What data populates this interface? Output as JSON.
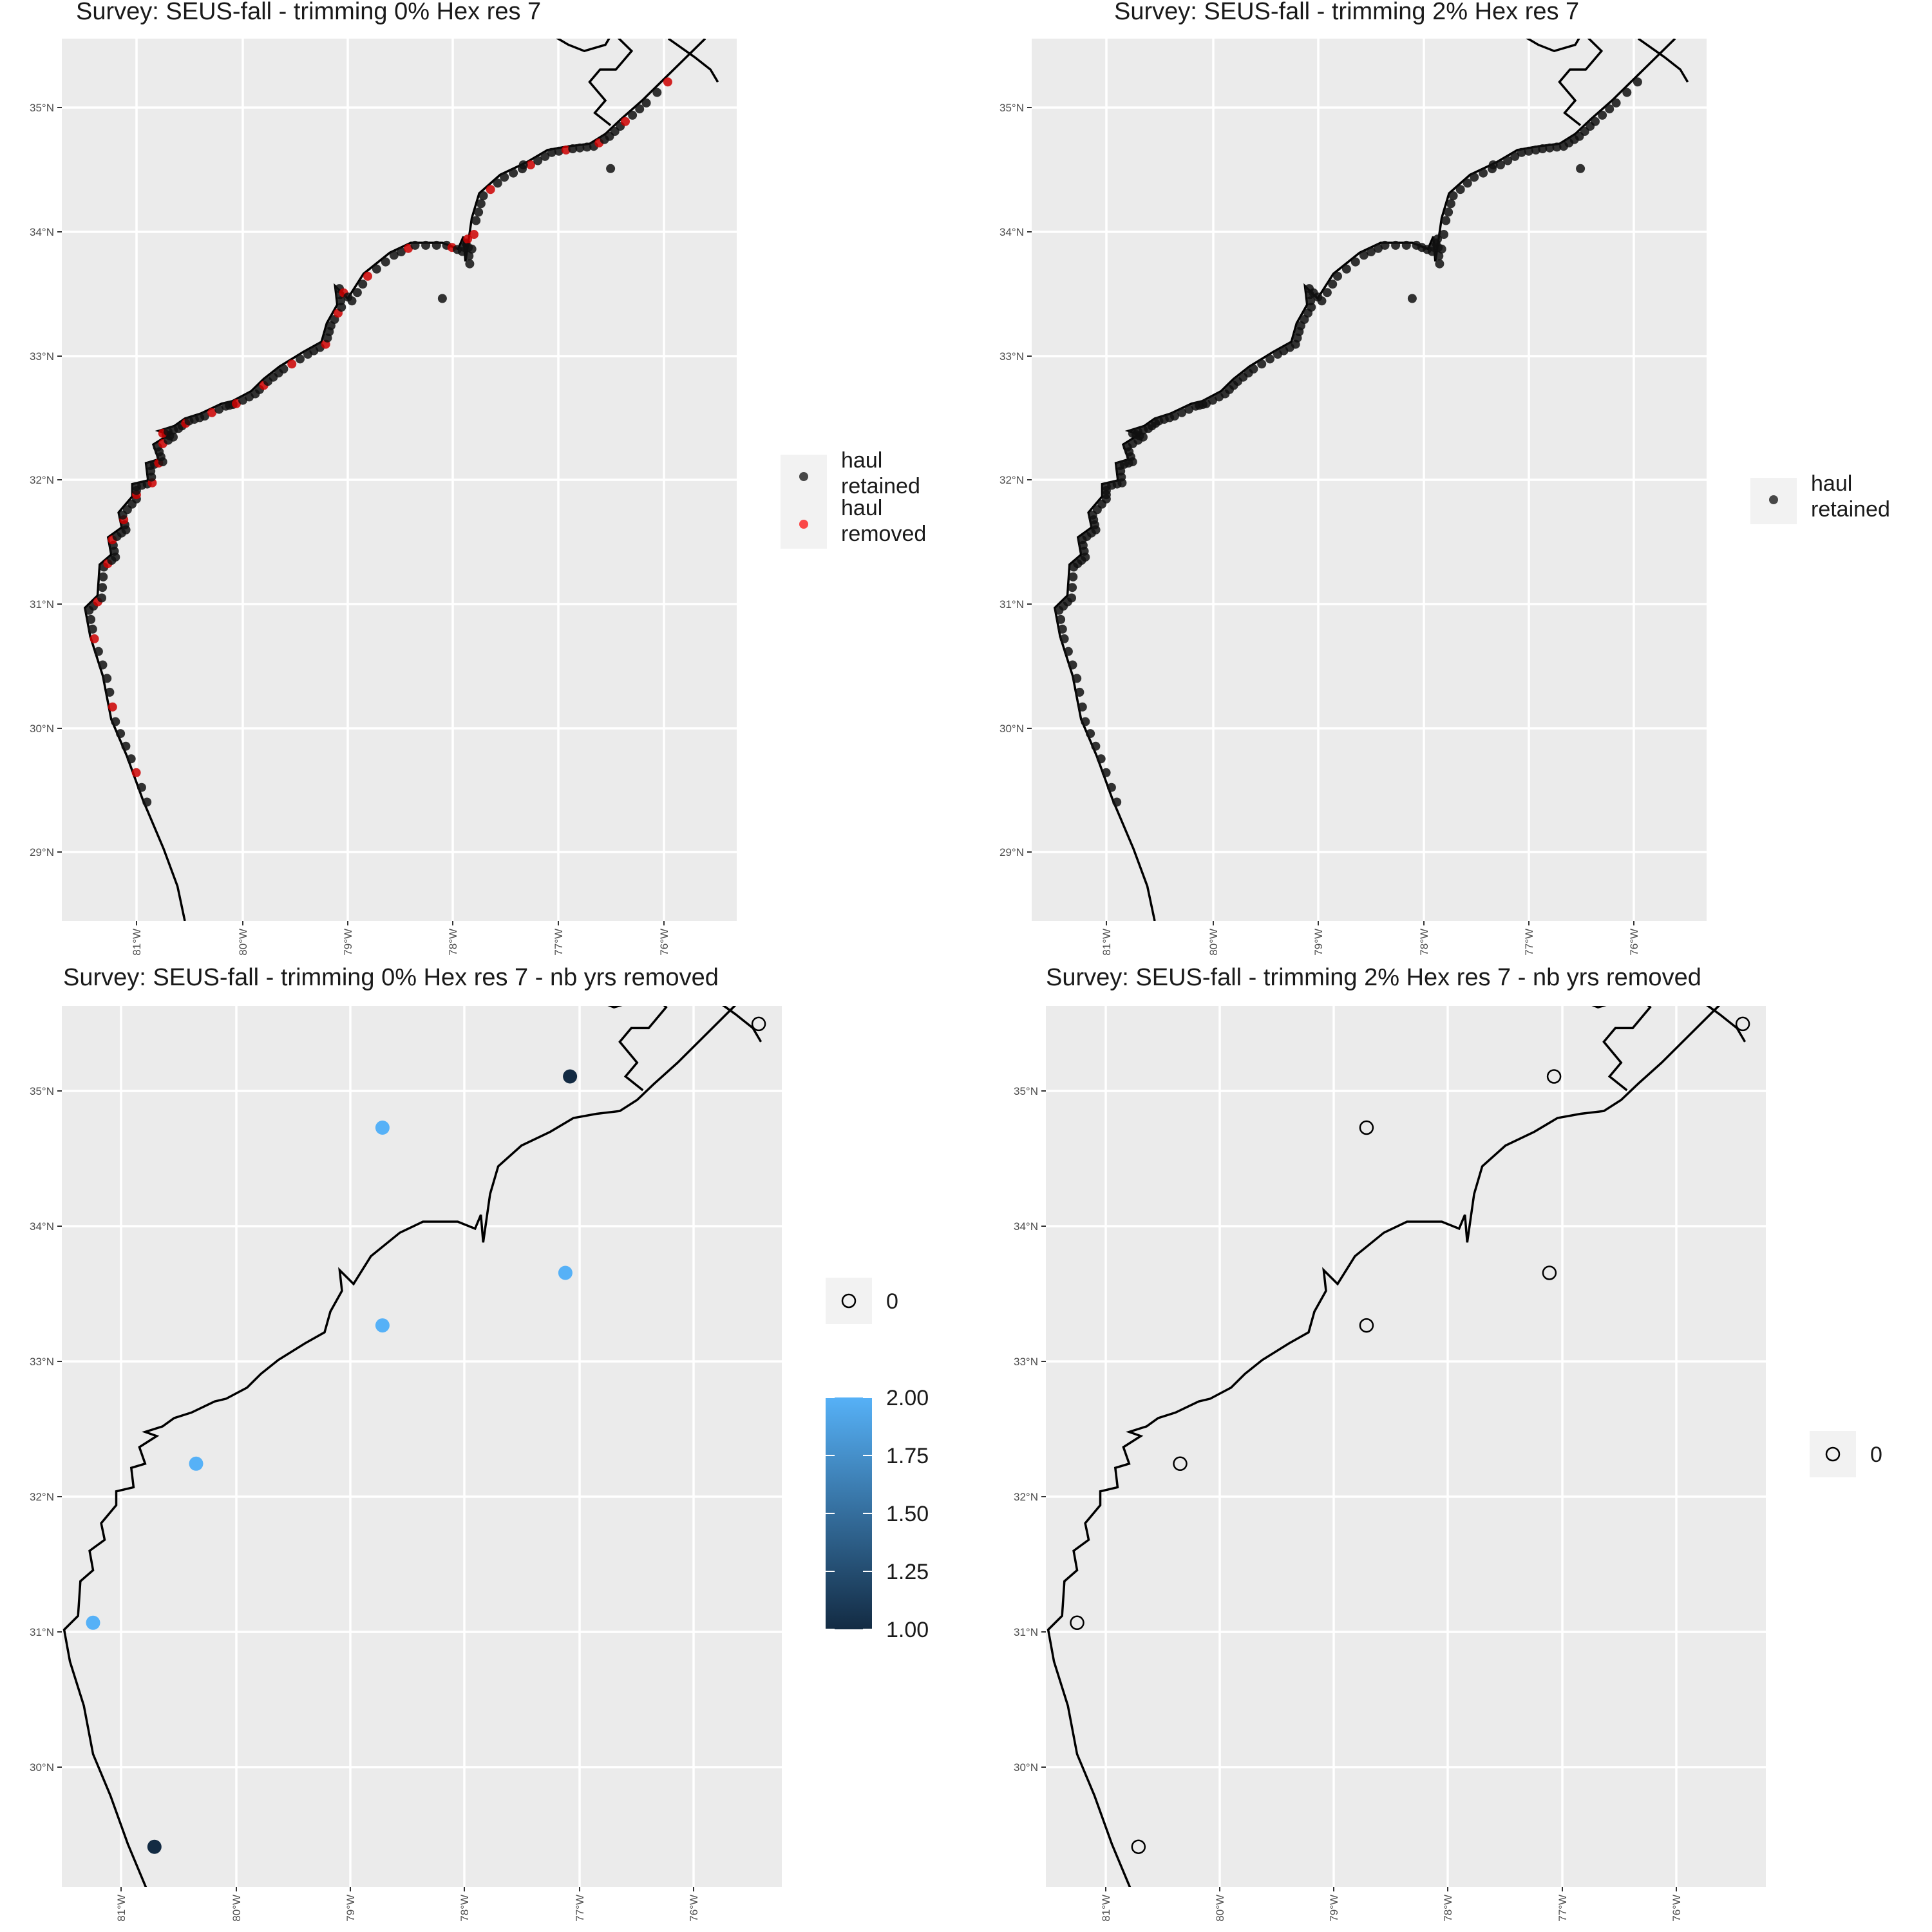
{
  "figure": {
    "panels": [
      {
        "id": "p1",
        "title": "Survey: SEUS-fall - trimming 0% Hex res 7",
        "x_ticks": [
          "81°W",
          "80°W",
          "79°W",
          "78°W",
          "77°W",
          "76°W"
        ],
        "y_ticks": [
          "35°N",
          "34°N",
          "33°N",
          "32°N",
          "31°N",
          "30°N",
          "29°N"
        ],
        "legend": {
          "type": "categorical",
          "entries": [
            {
              "label_lines": [
                "haul",
                "retained"
              ],
              "color": "#000000"
            },
            {
              "label_lines": [
                "haul",
                "removed"
              ],
              "color": "#ff0000"
            }
          ]
        }
      },
      {
        "id": "p2",
        "title": "Survey: SEUS-fall - trimming 2% Hex res 7",
        "x_ticks": [
          "81°W",
          "80°W",
          "79°W",
          "78°W",
          "77°W",
          "76°W"
        ],
        "y_ticks": [
          "35°N",
          "34°N",
          "33°N",
          "32°N",
          "31°N",
          "30°N",
          "29°N"
        ],
        "legend": {
          "type": "categorical",
          "entries": [
            {
              "label_lines": [
                "haul",
                "retained"
              ],
              "color": "#000000"
            }
          ]
        }
      },
      {
        "id": "p3",
        "title": "Survey: SEUS-fall - trimming 0% Hex res 7 - nb yrs removed",
        "x_ticks": [
          "81°W",
          "80°W",
          "79°W",
          "78°W",
          "77°W",
          "76°W"
        ],
        "y_ticks": [
          "35°N",
          "34°N",
          "33°N",
          "32°N",
          "31°N",
          "30°N"
        ],
        "legend": {
          "type": "combined",
          "zero_label": "0",
          "colorbar_labels": [
            "2.00",
            "1.75",
            "1.50",
            "1.25",
            "1.00"
          ],
          "colorbar_low": "#132b43",
          "colorbar_high": "#56b1f7"
        }
      },
      {
        "id": "p4",
        "title": "Survey: SEUS-fall - trimming 2% Hex res 7 - nb yrs removed",
        "x_ticks": [
          "81°W",
          "80°W",
          "79°W",
          "78°W",
          "77°W",
          "76°W"
        ],
        "y_ticks": [
          "35°N",
          "34°N",
          "33°N",
          "32°N",
          "31°N",
          "30°N"
        ],
        "legend": {
          "type": "zero",
          "zero_label": "0"
        }
      }
    ],
    "hex_points": [
      {
        "lon": -80.72,
        "lat": 29.38,
        "years_removed": 1
      },
      {
        "lon": -81.25,
        "lat": 31.0,
        "years_removed": 2
      },
      {
        "lon": -80.36,
        "lat": 32.15,
        "years_removed": 2
      },
      {
        "lon": -78.75,
        "lat": 33.15,
        "years_removed": 2
      },
      {
        "lon": -78.75,
        "lat": 34.58,
        "years_removed": 2
      },
      {
        "lon": -77.17,
        "lat": 33.53,
        "years_removed": 2
      },
      {
        "lon": -77.13,
        "lat": 34.95,
        "years_removed": 1
      },
      {
        "lon": -75.5,
        "lat": 35.33,
        "years_removed": 0
      }
    ]
  }
}
